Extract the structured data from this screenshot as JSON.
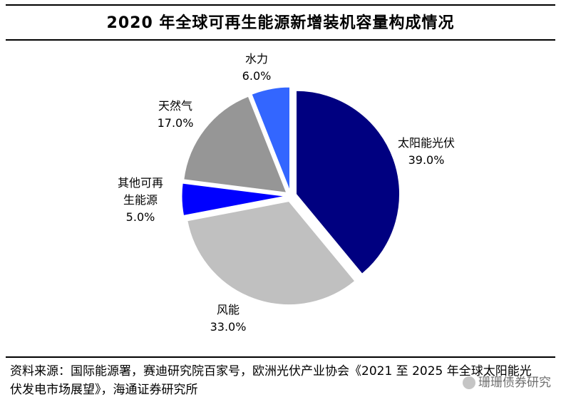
{
  "title": "2020 年全球可再生能源新增装机容量构成情况",
  "source": "资料来源：国际能源署，赛迪研究院百家号，欧洲光伏产业协会《2021 至 2025 年全球太阳能光伏发电市场展望》，海通证券研究所",
  "watermark": "珊珊债券研究",
  "chart_data": {
    "type": "pie",
    "title": "2020 年全球可再生能源新增装机容量构成情况",
    "slices": [
      {
        "label": "太阳能光伏",
        "value": 39.0,
        "display": "39.0%",
        "color": "#000080"
      },
      {
        "label": "风能",
        "value": 33.0,
        "display": "33.0%",
        "color": "#c0c0c0"
      },
      {
        "label": "其他可再生能源",
        "value": 5.0,
        "display": "5.0%",
        "color": "#0000ff"
      },
      {
        "label": "天然气",
        "value": 17.0,
        "display": "17.0%",
        "color": "#969696"
      },
      {
        "label": "水力",
        "value": 6.0,
        "display": "6.0%",
        "color": "#3366ff"
      }
    ],
    "exploded": true,
    "legend": "none"
  }
}
